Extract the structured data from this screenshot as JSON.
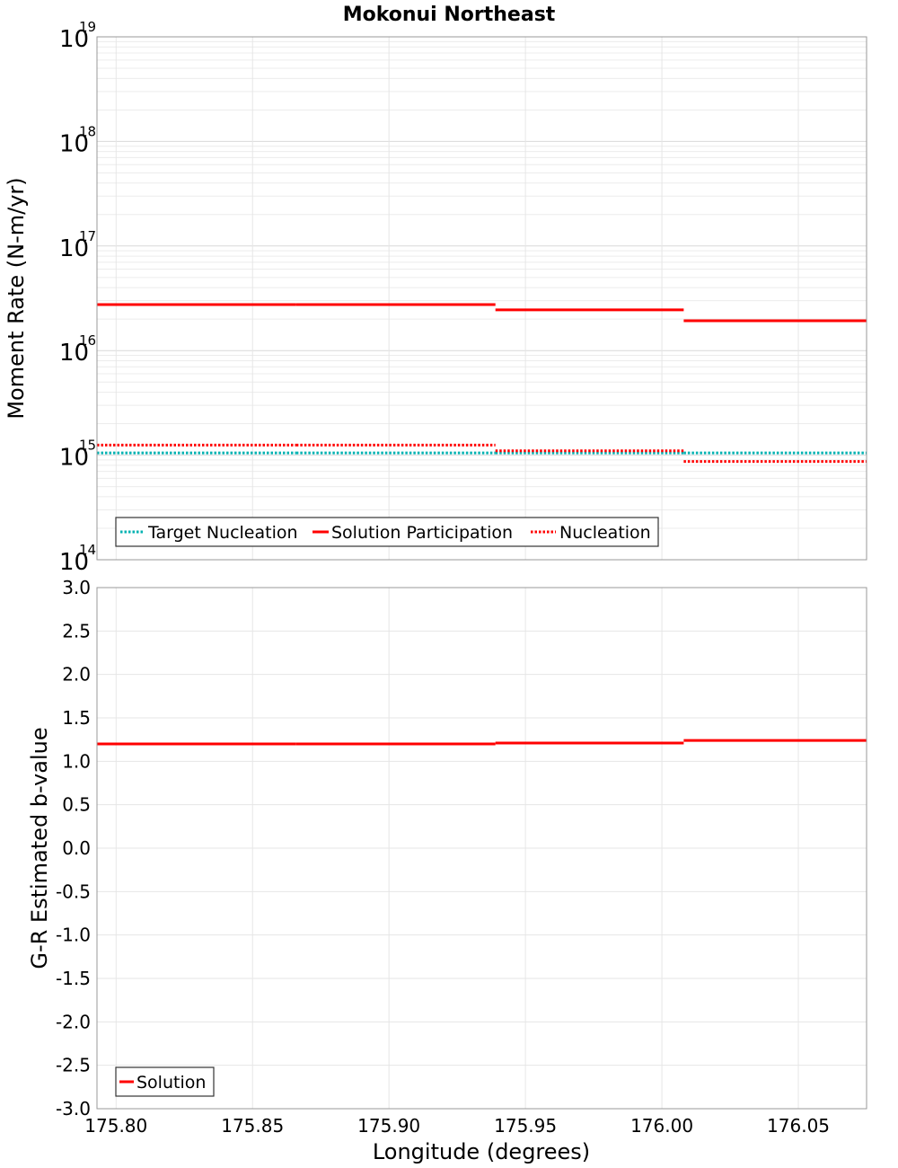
{
  "chart_data": [
    {
      "type": "line",
      "title": "Mokonui Northeast",
      "xlabel": "Longitude (degrees)",
      "ylabel": "Moment Rate (N-m/yr)",
      "yscale": "log",
      "xlim": [
        175.793,
        176.075
      ],
      "ylim": [
        100000000000000.0,
        1e+19
      ],
      "y_ticks": [
        {
          "base": "10",
          "exp": "14",
          "value": 100000000000000.0
        },
        {
          "base": "10",
          "exp": "15",
          "value": 1000000000000000.0
        },
        {
          "base": "10",
          "exp": "16",
          "value": 1e+16
        },
        {
          "base": "10",
          "exp": "17",
          "value": 1e+17
        },
        {
          "base": "10",
          "exp": "18",
          "value": 1e+18
        },
        {
          "base": "10",
          "exp": "19",
          "value": 1e+19
        }
      ],
      "grid": true,
      "legend_position": "bottom-left",
      "segment_edges": [
        175.793,
        175.866,
        175.939,
        176.008,
        176.075
      ],
      "series": [
        {
          "name": "Target Nucleation",
          "style": "dotted",
          "color": "#00b2b2",
          "values": [
            1050000000000000.0,
            1050000000000000.0,
            1050000000000000.0,
            1050000000000000.0
          ]
        },
        {
          "name": "Solution Participation",
          "style": "solid",
          "color": "#ff0000",
          "values": [
            2.75e+16,
            2.75e+16,
            2.45e+16,
            1.93e+16
          ]
        },
        {
          "name": "Nucleation",
          "style": "dotted",
          "color": "#ff0000",
          "values": [
            1250000000000000.0,
            1250000000000000.0,
            1100000000000000.0,
            870000000000000.0
          ]
        }
      ]
    },
    {
      "type": "line",
      "title": "",
      "xlabel": "Longitude (degrees)",
      "ylabel": "G-R Estimated b-value",
      "xlim": [
        175.793,
        176.075
      ],
      "ylim": [
        -3.0,
        3.0
      ],
      "x_ticks": [
        "175.80",
        "175.85",
        "175.90",
        "175.95",
        "176.00",
        "176.05"
      ],
      "x_tick_values": [
        175.8,
        175.85,
        175.9,
        175.95,
        176.0,
        176.05
      ],
      "y_ticks": [
        "3.0",
        "2.5",
        "2.0",
        "1.5",
        "1.0",
        "0.5",
        "0.0",
        "-0.5",
        "-1.0",
        "-1.5",
        "-2.0",
        "-2.5",
        "-3.0"
      ],
      "y_tick_values": [
        3.0,
        2.5,
        2.0,
        1.5,
        1.0,
        0.5,
        0.0,
        -0.5,
        -1.0,
        -1.5,
        -2.0,
        -2.5,
        -3.0
      ],
      "grid": true,
      "legend_position": "bottom-left",
      "segment_edges": [
        175.793,
        175.866,
        175.939,
        176.008,
        176.075
      ],
      "series": [
        {
          "name": "Solution",
          "style": "solid",
          "color": "#ff0000",
          "values": [
            1.2,
            1.2,
            1.21,
            1.24
          ]
        }
      ]
    }
  ]
}
